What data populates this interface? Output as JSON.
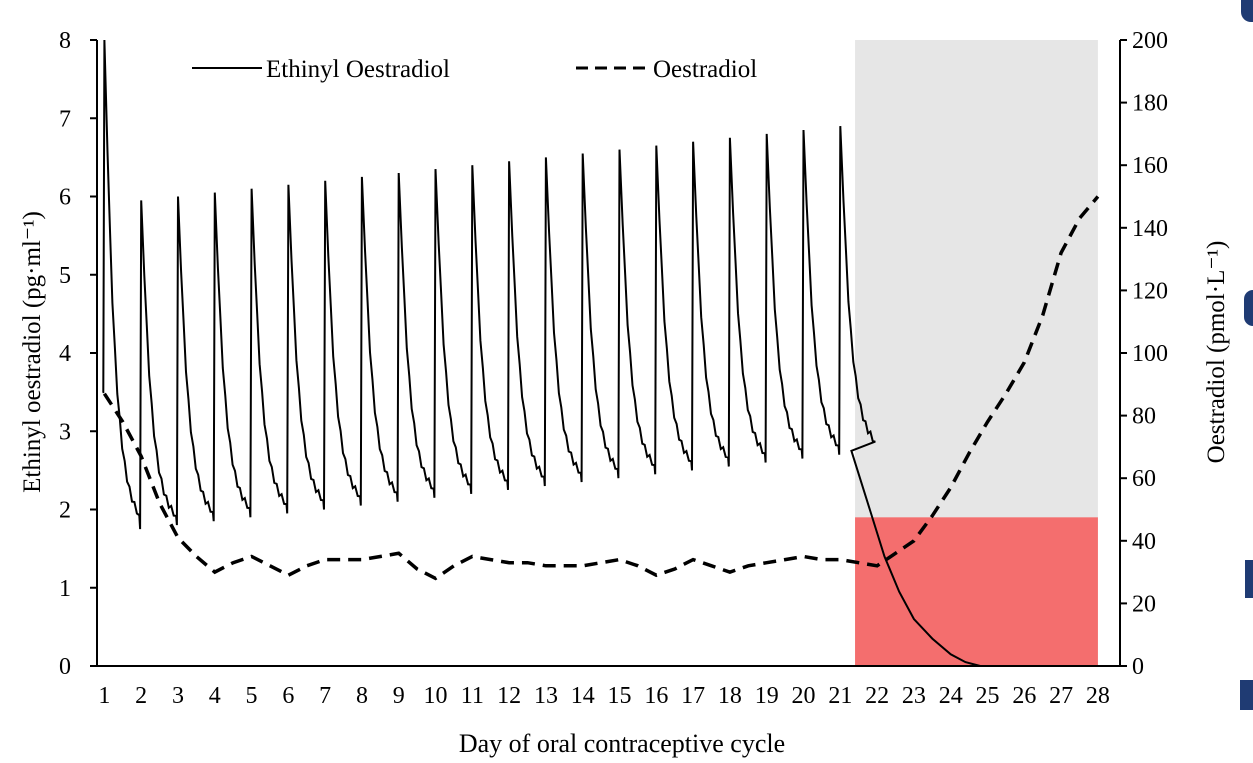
{
  "chart_data": {
    "type": "line",
    "xlabel": "Day of oral contraceptive cycle",
    "ylabel_left": "Ethinyl oestradiol (pg·ml⁻¹)",
    "ylabel_right": "Oestradiol (pmol·L⁻¹)",
    "categories": [
      "1",
      "2",
      "3",
      "4",
      "5",
      "6",
      "7",
      "8",
      "9",
      "10",
      "11",
      "12",
      "13",
      "14",
      "15",
      "16",
      "17",
      "18",
      "19",
      "20",
      "21",
      "22",
      "23",
      "24",
      "25",
      "26",
      "27",
      "28"
    ],
    "xlim": [
      0.8,
      28.6
    ],
    "ylim_left": [
      0,
      8
    ],
    "ylim_right": [
      0,
      200
    ],
    "yticks_left": [
      "0",
      "1",
      "2",
      "3",
      "4",
      "5",
      "6",
      "7",
      "8"
    ],
    "yticks_right": [
      "0",
      "20",
      "40",
      "60",
      "80",
      "100",
      "120",
      "140",
      "160",
      "180",
      "200"
    ],
    "legend_position": "top",
    "series": [
      {
        "name": "Ethinyl Oestradiol",
        "axis": "left",
        "style": "solid",
        "color": "#000000",
        "dose_days": [
          1,
          2,
          3,
          4,
          5,
          6,
          7,
          8,
          9,
          10,
          11,
          12,
          13,
          14,
          15,
          16,
          17,
          18,
          19,
          20,
          21
        ],
        "peaks": [
          8.0,
          5.95,
          6.0,
          6.05,
          6.1,
          6.15,
          6.2,
          6.25,
          6.3,
          6.35,
          6.4,
          6.45,
          6.5,
          6.55,
          6.6,
          6.65,
          6.7,
          6.75,
          6.8,
          6.85,
          6.9
        ],
        "troughs": [
          1.75,
          1.8,
          1.85,
          1.9,
          1.95,
          2.0,
          2.05,
          2.1,
          2.15,
          2.2,
          2.25,
          2.3,
          2.35,
          2.4,
          2.45,
          2.5,
          2.55,
          2.6,
          2.65,
          2.7,
          2.75
        ],
        "washout": [
          [
            21.3,
            2.75
          ],
          [
            21.8,
            2.0
          ],
          [
            22.2,
            1.4
          ],
          [
            22.6,
            0.95
          ],
          [
            23.0,
            0.6
          ],
          [
            23.5,
            0.35
          ],
          [
            24.0,
            0.15
          ],
          [
            24.4,
            0.05
          ],
          [
            24.8,
            0.0
          ],
          [
            25.0,
            0.0
          ]
        ]
      },
      {
        "name": "Oestradiol",
        "axis": "right",
        "style": "dashed",
        "color": "#000000",
        "points": [
          [
            1,
            87
          ],
          [
            1.5,
            78
          ],
          [
            2,
            67
          ],
          [
            2.5,
            52
          ],
          [
            3,
            41
          ],
          [
            3.5,
            35
          ],
          [
            4,
            30
          ],
          [
            4.5,
            33
          ],
          [
            5,
            35
          ],
          [
            5.5,
            32
          ],
          [
            6,
            29
          ],
          [
            6.5,
            32
          ],
          [
            7,
            34
          ],
          [
            7.5,
            34
          ],
          [
            8,
            34
          ],
          [
            8.5,
            35
          ],
          [
            9,
            36
          ],
          [
            9.5,
            31
          ],
          [
            10,
            28
          ],
          [
            10.5,
            32
          ],
          [
            11,
            35
          ],
          [
            11.5,
            34
          ],
          [
            12,
            33
          ],
          [
            12.5,
            33
          ],
          [
            13,
            32
          ],
          [
            13.5,
            32
          ],
          [
            14,
            32
          ],
          [
            14.5,
            33
          ],
          [
            15,
            34
          ],
          [
            15.5,
            32
          ],
          [
            16,
            29
          ],
          [
            16.5,
            31
          ],
          [
            17,
            34
          ],
          [
            17.5,
            32
          ],
          [
            18,
            30
          ],
          [
            18.5,
            32
          ],
          [
            19,
            33
          ],
          [
            19.5,
            34
          ],
          [
            20,
            35
          ],
          [
            20.5,
            34
          ],
          [
            21,
            34
          ],
          [
            21.5,
            33
          ],
          [
            22,
            32
          ],
          [
            22.5,
            36
          ],
          [
            23,
            40
          ],
          [
            23.5,
            48
          ],
          [
            24,
            57
          ],
          [
            24.5,
            68
          ],
          [
            25,
            78
          ],
          [
            25.5,
            87
          ],
          [
            26,
            97
          ],
          [
            26.5,
            112
          ],
          [
            27,
            132
          ],
          [
            27.5,
            143
          ],
          [
            28,
            150
          ]
        ]
      }
    ],
    "shaded_regions": [
      {
        "x": [
          21.4,
          28.0
        ],
        "y_left": [
          0,
          8
        ],
        "color": "#e6e6e6"
      },
      {
        "x": [
          21.4,
          28.0
        ],
        "y_left": [
          0,
          1.9
        ],
        "color": "#f46e6e"
      }
    ]
  },
  "colors": {
    "shade_gray": "#e6e6e6",
    "shade_red": "#f46e6e",
    "line": "#000000",
    "edge_marks": "#1f3b73"
  }
}
